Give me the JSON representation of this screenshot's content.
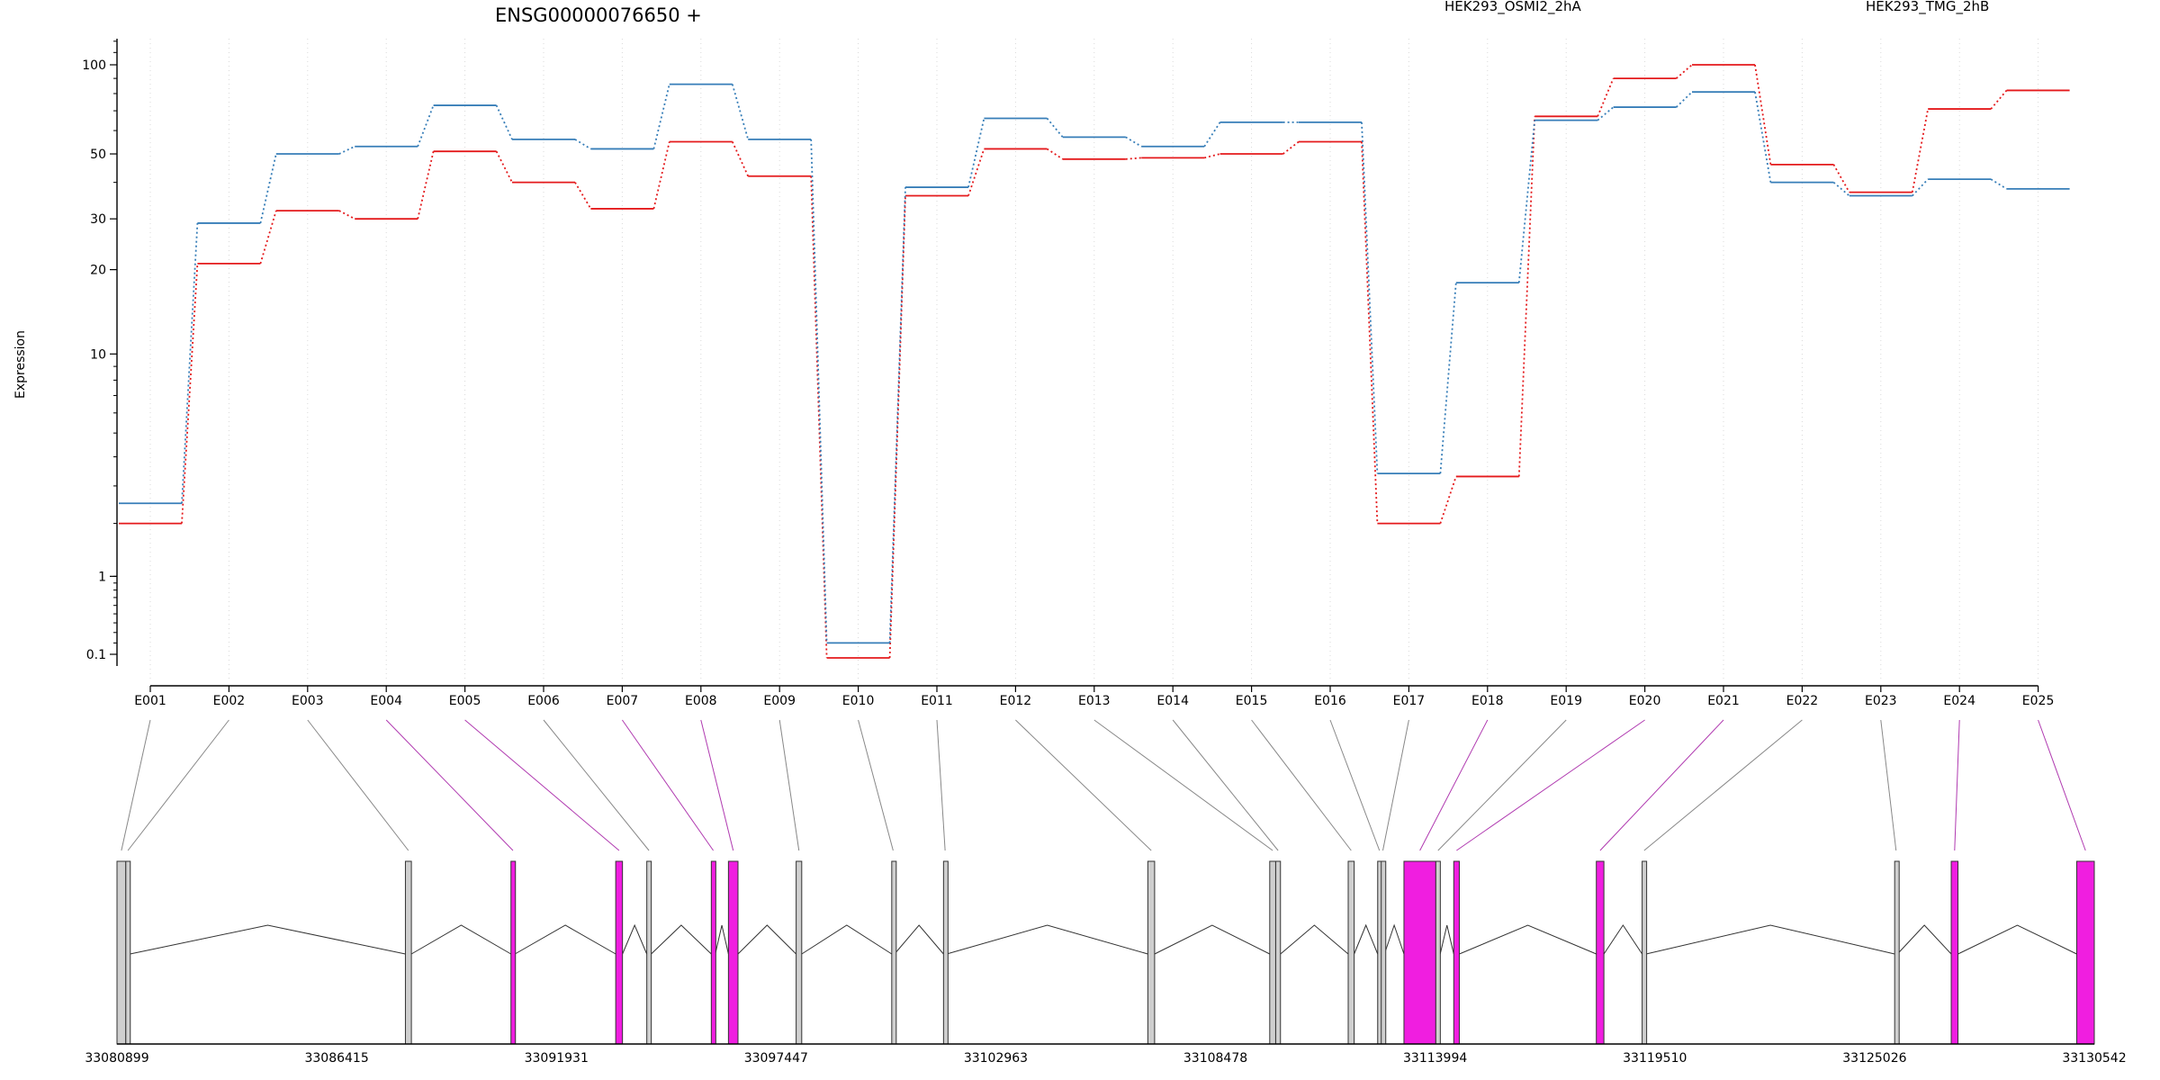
{
  "chart_data": {
    "type": "line",
    "title": "ENSG00000076650 +",
    "ylabel": "Expression",
    "xlabel": "",
    "y_scale": "log (expression + 1)",
    "ylim": [
      0.09,
      130
    ],
    "y_ticks": [
      0.1,
      1,
      10,
      20,
      30,
      50,
      100
    ],
    "y_tick_labels": [
      "0.1",
      "1",
      "10",
      "20",
      "30",
      "50",
      "100"
    ],
    "grid": "vertical dotted lines at exon centers",
    "legend_position": "top-right",
    "categories": [
      "E001",
      "E002",
      "E003",
      "E004",
      "E005",
      "E006",
      "E007",
      "E008",
      "E009",
      "E010",
      "E011",
      "E012",
      "E013",
      "E014",
      "E015",
      "E016",
      "E017",
      "E018",
      "E019",
      "E020",
      "E021",
      "E022",
      "E023",
      "E024",
      "E025"
    ],
    "series": [
      {
        "name": "HEK293_OSMI2_2hA",
        "color": "#e41a1c",
        "values": [
          2.0,
          21.0,
          32.0,
          30.0,
          51.0,
          40.0,
          32.5,
          55.0,
          42.0,
          0.07,
          36.0,
          52.0,
          48.0,
          48.5,
          50.0,
          55.0,
          2.0,
          3.3,
          67.0,
          90.0,
          100.0,
          46.0,
          37.0,
          71.0,
          82.0
        ]
      },
      {
        "name": "HEK293_TMG_2hB",
        "color": "#377eb8",
        "values": [
          2.5,
          29.0,
          50.0,
          53.0,
          73.0,
          56.0,
          52.0,
          86.0,
          56.0,
          0.2,
          38.5,
          66.0,
          57.0,
          53.0,
          64.0,
          64.0,
          3.4,
          18.0,
          65.0,
          72.0,
          81.0,
          40.0,
          36.0,
          41.0,
          38.0
        ]
      }
    ],
    "gene_model": {
      "coordinate_labels": [
        "33080899",
        "33086415",
        "33091931",
        "33097447",
        "33102963",
        "33108478",
        "33113994",
        "33119510",
        "33125026",
        "33130542"
      ],
      "genome_range": [
        33080899,
        33130542
      ],
      "exons": [
        {
          "id": "E001",
          "start": 33080899,
          "end": 33081120,
          "highlight": false
        },
        {
          "id": "E002",
          "start": 33081120,
          "end": 33081225,
          "highlight": false
        },
        {
          "id": "E003",
          "start": 33088140,
          "end": 33088290,
          "highlight": false
        },
        {
          "id": "E004",
          "start": 33090790,
          "end": 33090890,
          "highlight": true
        },
        {
          "id": "E005",
          "start": 33093420,
          "end": 33093590,
          "highlight": true
        },
        {
          "id": "E006",
          "start": 33094200,
          "end": 33094310,
          "highlight": false
        },
        {
          "id": "E007",
          "start": 33095820,
          "end": 33095920,
          "highlight": true
        },
        {
          "id": "E008",
          "start": 33096250,
          "end": 33096490,
          "highlight": true
        },
        {
          "id": "E009",
          "start": 33097950,
          "end": 33098090,
          "highlight": false
        },
        {
          "id": "E010",
          "start": 33100350,
          "end": 33100420,
          "highlight": false
        },
        {
          "id": "E011",
          "start": 33101650,
          "end": 33101730,
          "highlight": false
        },
        {
          "id": "E012",
          "start": 33106780,
          "end": 33106950,
          "highlight": false
        },
        {
          "id": "E013",
          "start": 33109840,
          "end": 33109990,
          "highlight": false
        },
        {
          "id": "E014",
          "start": 33109990,
          "end": 33110110,
          "highlight": false
        },
        {
          "id": "E015",
          "start": 33111810,
          "end": 33111960,
          "highlight": false
        },
        {
          "id": "E016",
          "start": 33112550,
          "end": 33112640,
          "highlight": false
        },
        {
          "id": "E017",
          "start": 33112640,
          "end": 33112720,
          "highlight": false
        },
        {
          "id": "E018",
          "start": 33113210,
          "end": 33114010,
          "highlight": true
        },
        {
          "id": "E019",
          "start": 33114010,
          "end": 33114120,
          "highlight": false
        },
        {
          "id": "E020",
          "start": 33114460,
          "end": 33114600,
          "highlight": true
        },
        {
          "id": "E021",
          "start": 33118040,
          "end": 33118230,
          "highlight": true
        },
        {
          "id": "E022",
          "start": 33119190,
          "end": 33119290,
          "highlight": false
        },
        {
          "id": "E023",
          "start": 33125530,
          "end": 33125600,
          "highlight": false
        },
        {
          "id": "E024",
          "start": 33126950,
          "end": 33127120,
          "highlight": true
        },
        {
          "id": "E025",
          "start": 33130100,
          "end": 33130542,
          "highlight": true
        }
      ]
    }
  }
}
